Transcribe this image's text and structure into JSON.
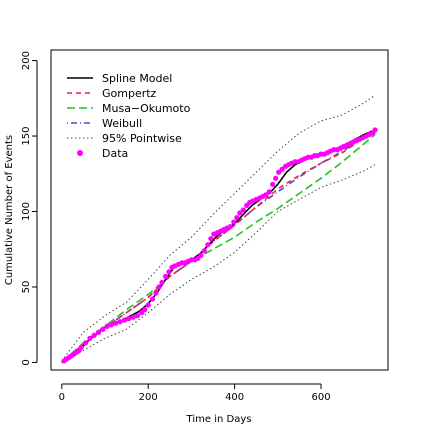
{
  "chart_data": {
    "type": "line",
    "title": "",
    "xlabel": "Time in Days",
    "ylabel": "Cumulative Number of Events",
    "xlim": [
      -25,
      755
    ],
    "ylim": [
      -5,
      207
    ],
    "xticks": [
      0,
      200,
      400,
      600
    ],
    "yticks": [
      0,
      50,
      100,
      150,
      200
    ],
    "legend_position": "top-left",
    "grid": false,
    "series": [
      {
        "name": "Spline Model",
        "color": "#000000",
        "style": "solid",
        "x": [
          0,
          20,
          40,
          60,
          80,
          100,
          120,
          140,
          160,
          180,
          200,
          220,
          240,
          260,
          280,
          300,
          320,
          340,
          360,
          380,
          400,
          420,
          440,
          460,
          480,
          500,
          520,
          540,
          560,
          580,
          600,
          620,
          640,
          660,
          680,
          700,
          725
        ],
        "y": [
          0,
          4,
          8,
          14,
          19,
          23,
          26,
          28,
          31,
          34,
          39,
          46,
          55,
          63,
          66,
          68,
          72,
          78,
          84,
          88,
          92,
          98,
          104,
          108,
          112,
          118,
          126,
          131,
          134,
          136,
          138,
          140,
          142,
          145,
          148,
          151,
          154
        ]
      },
      {
        "name": "Gompertz",
        "color": "#e8253a",
        "style": "dashed",
        "x": [
          0,
          50,
          100,
          150,
          200,
          250,
          300,
          350,
          400,
          450,
          500,
          550,
          600,
          650,
          700,
          725
        ],
        "y": [
          0,
          12,
          23,
          33,
          43,
          57,
          67,
          80,
          91,
          103,
          115,
          124,
          132,
          139,
          149,
          153
        ]
      },
      {
        "name": "Musa−Okumoto",
        "color": "#22c224",
        "style": "longdash",
        "x": [
          0,
          50,
          100,
          150,
          200,
          250,
          300,
          350,
          400,
          450,
          500,
          550,
          600,
          650,
          700,
          725
        ],
        "y": [
          0,
          13,
          24,
          35,
          45,
          57,
          67,
          75,
          83,
          93,
          102,
          112,
          122,
          133,
          145,
          151
        ]
      },
      {
        "name": "Weibull",
        "color": "#5b3fd6",
        "style": "dotdash",
        "x": [
          0,
          50,
          100,
          150,
          200,
          250,
          300,
          350,
          400,
          450,
          500,
          550,
          600,
          650,
          700,
          725
        ],
        "y": [
          0,
          12,
          23,
          33,
          43,
          57,
          67,
          80,
          91,
          103,
          113,
          123,
          132,
          140,
          149,
          153
        ]
      },
      {
        "name": "95% Pointwise",
        "color": "#444444",
        "style": "dotted",
        "x": [
          0,
          50,
          100,
          150,
          200,
          250,
          300,
          350,
          400,
          450,
          500,
          550,
          600,
          650,
          700,
          725
        ],
        "y": [
          1,
          20,
          31,
          40,
          55,
          71,
          83,
          98,
          112,
          126,
          140,
          152,
          160,
          164,
          172,
          177
        ]
      },
      {
        "name": "",
        "color": "#444444",
        "style": "dotted",
        "x": [
          0,
          50,
          100,
          150,
          200,
          250,
          300,
          350,
          400,
          450,
          500,
          550,
          600,
          650,
          700,
          725
        ],
        "y": [
          0,
          8,
          16,
          22,
          33,
          45,
          55,
          63,
          73,
          86,
          100,
          108,
          116,
          121,
          127,
          131
        ]
      }
    ],
    "scatter": {
      "name": "Data",
      "color": "#ff00ff",
      "x": [
        5,
        10,
        15,
        20,
        25,
        30,
        35,
        40,
        45,
        55,
        65,
        75,
        85,
        95,
        105,
        115,
        125,
        135,
        145,
        155,
        165,
        175,
        185,
        192,
        200,
        210,
        218,
        225,
        232,
        240,
        248,
        255,
        262,
        270,
        278,
        285,
        292,
        300,
        308,
        315,
        322,
        330,
        338,
        345,
        352,
        360,
        368,
        375,
        382,
        390,
        398,
        405,
        412,
        420,
        428,
        435,
        442,
        450,
        458,
        465,
        472,
        480,
        488,
        495,
        502,
        510,
        518,
        525,
        532,
        540,
        548,
        555,
        562,
        570,
        578,
        585,
        592,
        600,
        608,
        615,
        622,
        630,
        638,
        645,
        652,
        660,
        668,
        675,
        682,
        690,
        698,
        705,
        712,
        720,
        725
      ],
      "y": [
        1,
        2,
        3,
        4,
        5,
        6,
        7,
        8,
        10,
        13,
        16,
        18,
        20,
        22,
        24,
        25,
        26,
        27,
        28,
        29,
        30,
        31,
        33,
        35,
        38,
        42,
        46,
        50,
        53,
        57,
        60,
        63,
        64,
        65,
        66,
        66,
        67,
        68,
        68,
        69,
        71,
        74,
        78,
        82,
        85,
        86,
        87,
        88,
        89,
        90,
        93,
        96,
        99,
        101,
        104,
        106,
        107,
        108,
        109,
        110,
        111,
        113,
        118,
        122,
        126,
        128,
        130,
        131,
        132,
        133,
        133,
        134,
        135,
        136,
        136,
        137,
        137,
        138,
        138,
        139,
        140,
        141,
        141,
        142,
        143,
        144,
        145,
        146,
        147,
        148,
        149,
        150,
        151,
        152,
        154
      ]
    }
  }
}
